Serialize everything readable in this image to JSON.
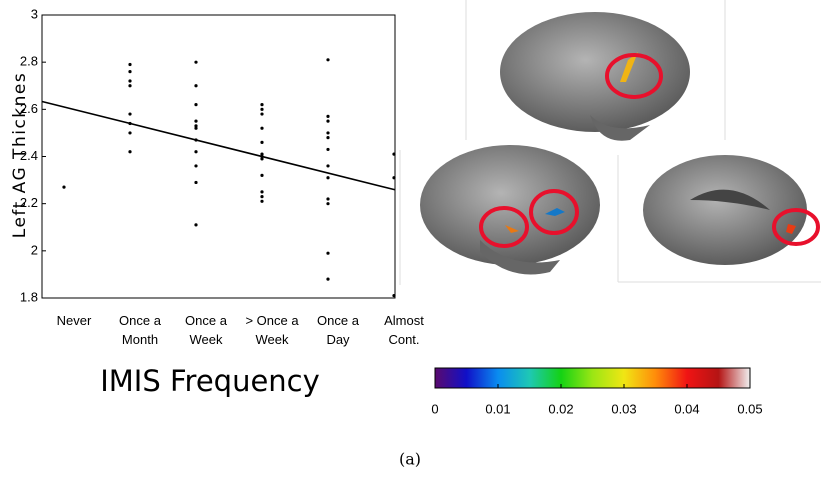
{
  "chart_data": [
    {
      "type": "scatter",
      "y_label": "Left AG Thicknes",
      "x_label": "IMIS Frequency",
      "categories": [
        [
          "Never"
        ],
        [
          "Once a",
          "Month"
        ],
        [
          "Once a",
          "Week"
        ],
        [
          "> Once a",
          "Week"
        ],
        [
          "Once a",
          "Day"
        ],
        [
          "Almost",
          "Cont."
        ]
      ],
      "values": [
        [
          2.27
        ],
        [
          2.79,
          2.76,
          2.72,
          2.7,
          2.58,
          2.54,
          2.5,
          2.42
        ],
        [
          2.8,
          2.7,
          2.62,
          2.55,
          2.53,
          2.52,
          2.47,
          2.42,
          2.36,
          2.29,
          2.11
        ],
        [
          2.62,
          2.6,
          2.58,
          2.52,
          2.46,
          2.41,
          2.4,
          2.39,
          2.32,
          2.25,
          2.23,
          2.21
        ],
        [
          2.81,
          2.57,
          2.55,
          2.5,
          2.48,
          2.43,
          2.36,
          2.31,
          2.22,
          2.2,
          1.99,
          1.88
        ],
        [
          2.41,
          2.31,
          1.81
        ]
      ],
      "trend_line": [
        2.61,
        2.26
      ],
      "color": "#000000",
      "ylim": [
        1.8,
        3
      ],
      "yticks": [
        1.8,
        2,
        2.2,
        2.4,
        2.6,
        2.8,
        3
      ]
    },
    {
      "type": "colorbar",
      "colors": [
        "#5a0a6e",
        "#1010c8",
        "#0a8cf0",
        "#1ec8b4",
        "#14d214",
        "#9be614",
        "#f0e614",
        "#ff8c0a",
        "#f01414",
        "#b41414",
        "#f0f0f0"
      ],
      "xlim": [
        0,
        0.05
      ],
      "xticks": [
        0,
        0.01,
        0.02,
        0.03,
        0.04,
        0.05
      ]
    }
  ],
  "caption": "(a)"
}
